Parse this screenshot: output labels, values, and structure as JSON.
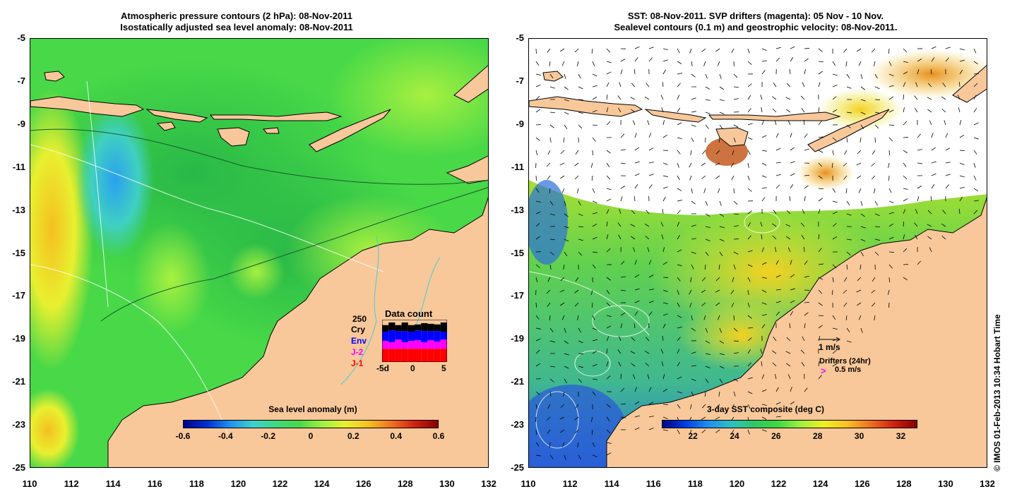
{
  "left_panel": {
    "title_line1": "Atmospheric pressure contours (2 hPa): 08-Nov-2011",
    "title_line2": "Isostatically adjusted sea level anomaly: 08-Nov-2011",
    "colorbar": {
      "title": "Sea level anomaly (m)",
      "ticks": [
        "-0.6",
        "-0.4",
        "-0.2",
        "0",
        "0.2",
        "0.4",
        "0.6"
      ],
      "range": [
        -0.6,
        0.6
      ]
    },
    "data_count": {
      "title": "Data count",
      "labels": [
        "Cry",
        "Env",
        "J-2",
        "J-1"
      ],
      "label_colors": [
        "#000000",
        "#0000ff",
        "#ff00ff",
        "#ff0000"
      ],
      "overlay_label": "250",
      "x_ticks": [
        "-5d",
        "0",
        "5"
      ],
      "days": [
        -5,
        -4,
        -3,
        -2,
        -1,
        0,
        1,
        2,
        3,
        4
      ],
      "series": [
        {
          "name": "J-1",
          "color": "#ff0000",
          "values": [
            2,
            2,
            2,
            2,
            2,
            2,
            2,
            2,
            2,
            2
          ]
        },
        {
          "name": "J-2",
          "color": "#ff00ff",
          "values": [
            1.2,
            1.0,
            1.4,
            1.0,
            1.2,
            1.3,
            1.0,
            1.3,
            1.1,
            1.4
          ]
        },
        {
          "name": "Env",
          "color": "#0000ff",
          "values": [
            1.4,
            1.8,
            1.3,
            1.7,
            1.4,
            1.5,
            1.7,
            1.4,
            1.6,
            1.2
          ]
        },
        {
          "name": "Cry",
          "color": "#000000",
          "values": [
            1.0,
            1.2,
            0.9,
            1.3,
            1.0,
            0.9,
            1.2,
            1.1,
            1.0,
            1.4
          ]
        }
      ]
    }
  },
  "right_panel": {
    "title_line1": "SST: 08-Nov-2011. SVP drifters (magenta): 05 Nov - 10 Nov.",
    "title_line2": "Sealevel contours (0.1 m) and geostrophic velocity: 08-Nov-2011.",
    "colorbar": {
      "title": "3-day SST composite (deg C)",
      "ticks": [
        "22",
        "24",
        "26",
        "28",
        "30",
        "32"
      ],
      "range": [
        20.5,
        32.8
      ]
    },
    "velocity_scale_label": "1 m/s",
    "drifters_label": "Drifters (24hr)",
    "drifters_speed_symbol": ">",
    "drifters_speed_label": "0.5 m/s"
  },
  "axes": {
    "y_ticks": [
      "-5",
      "-7",
      "-9",
      "-11",
      "-13",
      "-15",
      "-17",
      "-19",
      "-21",
      "-23",
      "-25"
    ],
    "x_ticks": [
      "110",
      "112",
      "114",
      "116",
      "118",
      "120",
      "122",
      "124",
      "126",
      "128",
      "130",
      "132"
    ]
  },
  "credit": "© IMOS 01-Feb-2013 10:34 Hobart Time",
  "colors": {
    "land": "#f8c89a",
    "sea_base_left": "#48d848",
    "sea_high": "#f0f020",
    "sea_low": "#3aa8e8",
    "cold_sst": "#2a58d8",
    "no_data": "#ffffff"
  }
}
